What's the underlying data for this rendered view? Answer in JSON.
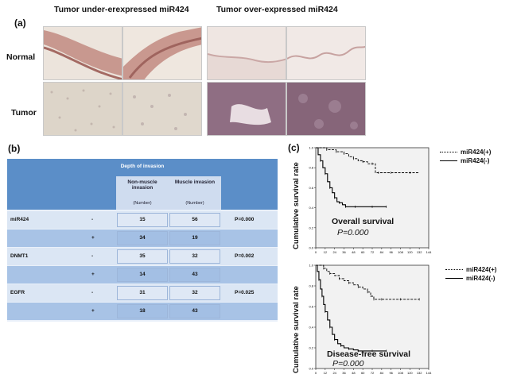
{
  "panel_a": {
    "label": "(a)",
    "left_title": "Tumor under-erexpressed miR424",
    "right_title": "Tumor over-expressed miR424",
    "row_normal": "Normal",
    "row_tumor": "Tumor",
    "colors": {
      "normal_under": "#c48f86",
      "normal_over": "#e7d9d5",
      "tumor_under": "#ddd5c9",
      "tumor_over": "#8f6e83"
    }
  },
  "panel_b": {
    "label": "(b)",
    "header": "Depth of invasion",
    "col1_title": "Non-muscle invasion",
    "col1_sub": "(Number)",
    "col2_title": "Muscle invasion",
    "col2_sub": "(Number)",
    "rows": [
      {
        "marker": "miR424",
        "sign": "-",
        "v1": "15",
        "v2": "56",
        "p": "P=0.000"
      },
      {
        "marker": "",
        "sign": "+",
        "v1": "34",
        "v2": "19",
        "p": ""
      },
      {
        "marker": "DNMT1",
        "sign": "-",
        "v1": "35",
        "v2": "32",
        "p": "P=0.002"
      },
      {
        "marker": "",
        "sign": "+",
        "v1": "14",
        "v2": "43",
        "p": ""
      },
      {
        "marker": "EGFR",
        "sign": "-",
        "v1": "31",
        "v2": "32",
        "p": "P=0.025"
      },
      {
        "marker": "",
        "sign": "+",
        "v1": "18",
        "v2": "43",
        "p": ""
      }
    ]
  },
  "panel_c": {
    "label": "(c)",
    "legend_pos": "miR424(+)",
    "legend_neg": "miR424(-)",
    "ylabel": "Cumulative survival rate"
  },
  "chart_data": [
    {
      "type": "line",
      "title": "Overall survival",
      "annotation": "P=0.000",
      "ylabel": "Cumulative survival rate",
      "xlabel": "",
      "xlim": [
        0,
        144
      ],
      "ylim": [
        0,
        1.0
      ],
      "x_ticks": [
        "0",
        "12",
        "24",
        "36",
        "48",
        "60",
        "72",
        "84",
        "96",
        "108",
        "120",
        "132",
        "144"
      ],
      "y_ticks": [
        "0.0",
        "0.2",
        "0.4",
        "0.6",
        "0.8",
        "1.0"
      ],
      "background": "#f2f2f2",
      "series": [
        {
          "name": "miR424(+)",
          "style": "dashed",
          "x": [
            0,
            8,
            14,
            20,
            26,
            30,
            36,
            42,
            48,
            54,
            60,
            66,
            72,
            76,
            80,
            84,
            96,
            108,
            120,
            132
          ],
          "y": [
            1.0,
            1.0,
            0.98,
            0.98,
            0.96,
            0.96,
            0.94,
            0.91,
            0.89,
            0.87,
            0.86,
            0.84,
            0.84,
            0.75,
            0.75,
            0.75,
            0.75,
            0.75,
            0.75,
            0.75
          ]
        },
        {
          "name": "miR424(-)",
          "style": "solid",
          "x": [
            0,
            3,
            6,
            9,
            12,
            15,
            18,
            21,
            24,
            27,
            30,
            34,
            38,
            44,
            50,
            60,
            72,
            84,
            90
          ],
          "y": [
            1.0,
            0.93,
            0.87,
            0.8,
            0.74,
            0.66,
            0.6,
            0.55,
            0.5,
            0.46,
            0.45,
            0.43,
            0.41,
            0.41,
            0.41,
            0.41,
            0.41,
            0.41,
            0.41
          ]
        }
      ]
    },
    {
      "type": "line",
      "title": "Disease-free survival",
      "annotation": "P=0.000",
      "ylabel": "Cumulative survival rate",
      "xlabel": "",
      "xlim": [
        0,
        144
      ],
      "ylim": [
        0,
        1.0
      ],
      "x_ticks": [
        "0",
        "12",
        "24",
        "36",
        "48",
        "60",
        "72",
        "84",
        "96",
        "108",
        "120",
        "132",
        "144"
      ],
      "y_ticks": [
        "0.0",
        "0.2",
        "0.4",
        "0.6",
        "0.8",
        "1.0"
      ],
      "background": "#f2f2f2",
      "series": [
        {
          "name": "miR424(+)",
          "style": "dashed",
          "x": [
            0,
            6,
            10,
            14,
            18,
            24,
            30,
            36,
            42,
            48,
            54,
            60,
            66,
            70,
            74,
            78,
            84,
            96,
            108,
            120,
            132
          ],
          "y": [
            1.0,
            1.0,
            0.97,
            0.94,
            0.92,
            0.9,
            0.87,
            0.85,
            0.83,
            0.81,
            0.79,
            0.77,
            0.74,
            0.7,
            0.67,
            0.67,
            0.67,
            0.67,
            0.67,
            0.67,
            0.67
          ]
        },
        {
          "name": "miR424(-)",
          "style": "solid",
          "x": [
            0,
            2,
            4,
            6,
            8,
            10,
            12,
            15,
            18,
            21,
            24,
            28,
            32,
            36,
            42,
            48,
            54,
            60,
            72,
            84,
            90
          ],
          "y": [
            1.0,
            0.94,
            0.86,
            0.77,
            0.7,
            0.62,
            0.55,
            0.47,
            0.4,
            0.33,
            0.28,
            0.24,
            0.22,
            0.2,
            0.19,
            0.18,
            0.17,
            0.17,
            0.17,
            0.17,
            0.17
          ]
        }
      ]
    }
  ]
}
